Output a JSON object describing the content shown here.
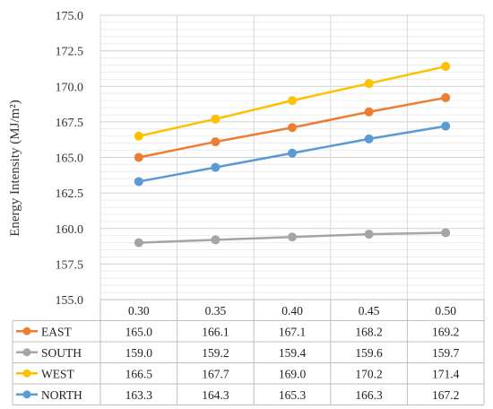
{
  "chart_data": {
    "type": "line",
    "categories": [
      "0.30",
      "0.35",
      "0.40",
      "0.45",
      "0.50"
    ],
    "series": [
      {
        "name": "EAST",
        "color": "#ED7D31",
        "values": [
          165.0,
          166.1,
          167.1,
          168.2,
          169.2
        ],
        "labels": [
          "165.0",
          "166.1",
          "167.1",
          "168.2",
          "169.2"
        ]
      },
      {
        "name": "SOUTH",
        "color": "#A5A5A5",
        "values": [
          159.0,
          159.2,
          159.4,
          159.6,
          159.7
        ],
        "labels": [
          "159.0",
          "159.2",
          "159.4",
          "159.6",
          "159.7"
        ]
      },
      {
        "name": "WEST",
        "color": "#FFC000",
        "values": [
          166.5,
          167.7,
          169.0,
          170.2,
          171.4
        ],
        "labels": [
          "166.5",
          "167.7",
          "169.0",
          "170.2",
          "171.4"
        ]
      },
      {
        "name": "NORTH",
        "color": "#5B9BD5",
        "values": [
          163.3,
          164.3,
          165.3,
          166.3,
          167.2
        ],
        "labels": [
          "163.3",
          "164.3",
          "165.3",
          "166.3",
          "167.2"
        ]
      }
    ],
    "ylabel": "Energy Intensity (MJ/m²)",
    "xlabel": "",
    "ylim": [
      155.0,
      175.0
    ],
    "y_ticks": [
      "155.0",
      "157.5",
      "160.0",
      "162.5",
      "165.0",
      "167.5",
      "170.0",
      "172.5",
      "175.0"
    ],
    "minor_grid_step": 0.5,
    "grid": true,
    "legend": "data-table"
  }
}
